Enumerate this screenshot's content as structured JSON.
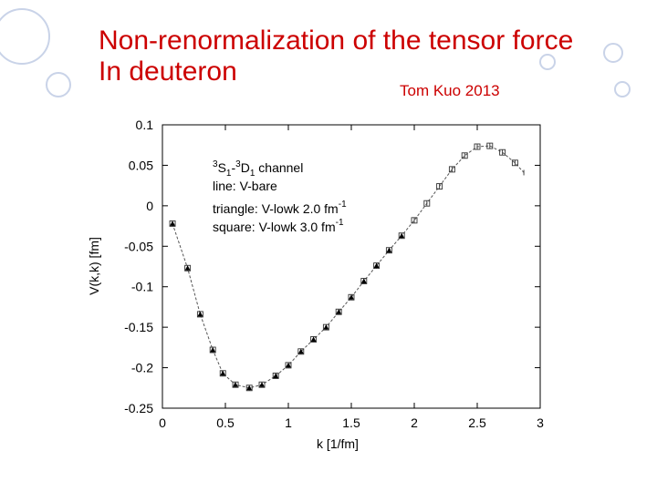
{
  "slide": {
    "title_line1": "Non-renormalization of the tensor force",
    "title_line2": "In deuteron",
    "author": "Tom Kuo 2013",
    "accent_color": "#cc0000",
    "ring_color": "#c9d3e8"
  },
  "chart_data": {
    "type": "line",
    "xlabel": "k  [1/fm]",
    "ylabel": "V(k,k)  [fm]",
    "xlim": [
      0,
      3
    ],
    "ylim": [
      -0.25,
      0.1
    ],
    "x_ticks": [
      0,
      0.5,
      1,
      1.5,
      2,
      2.5,
      3
    ],
    "y_ticks": [
      0.1,
      0.05,
      0,
      -0.05,
      -0.1,
      -0.15,
      -0.2,
      -0.25
    ],
    "x_tick_labels": [
      "0",
      "0.5",
      "1",
      "1.5",
      "2",
      "2.5",
      "3"
    ],
    "y_tick_labels": [
      "0.1",
      "0.05",
      "0",
      "-0.05",
      "-0.1",
      "-0.15",
      "-0.2",
      "-0.25"
    ],
    "grid": false,
    "legend_position": "top-left",
    "legend": {
      "channel_sup1": "3",
      "channel_s": "S",
      "channel_sub1": "1",
      "channel_dash": "-",
      "channel_sup2": "3",
      "channel_d": "D",
      "channel_sub2": "1",
      "channel_word": " channel",
      "line_entry": "line: V-bare",
      "triangle_entry": "triangle: V-lowk  2.0 fm",
      "triangle_sup": "-1",
      "square_entry": "square:  V-lowk  3.0 fm",
      "square_sup": "-1"
    },
    "series": [
      {
        "marker": "line",
        "x": [
          0.08,
          0.2,
          0.3,
          0.4,
          0.48,
          0.58,
          0.69,
          0.79,
          0.9,
          1.0,
          1.1,
          1.2,
          1.3,
          1.4,
          1.5,
          1.6,
          1.7,
          1.8,
          1.9,
          2.0,
          2.1,
          2.2,
          2.3,
          2.4,
          2.5,
          2.6,
          2.7,
          2.8,
          2.87
        ],
        "y": [
          -0.022,
          -0.077,
          -0.134,
          -0.178,
          -0.207,
          -0.221,
          -0.225,
          -0.221,
          -0.21,
          -0.197,
          -0.18,
          -0.165,
          -0.15,
          -0.131,
          -0.113,
          -0.093,
          -0.074,
          -0.055,
          -0.037,
          -0.018,
          0.003,
          0.024,
          0.045,
          0.062,
          0.073,
          0.074,
          0.066,
          0.053,
          0.041
        ]
      },
      {
        "marker": "triangle",
        "x": [
          0.08,
          0.2,
          0.3,
          0.4,
          0.48,
          0.58,
          0.69,
          0.79,
          0.9,
          1.0,
          1.1,
          1.2,
          1.3,
          1.4,
          1.5,
          1.6,
          1.7,
          1.8,
          1.9
        ],
        "y": [
          -0.022,
          -0.077,
          -0.134,
          -0.178,
          -0.207,
          -0.221,
          -0.225,
          -0.221,
          -0.21,
          -0.197,
          -0.18,
          -0.165,
          -0.15,
          -0.131,
          -0.113,
          -0.093,
          -0.074,
          -0.055,
          -0.037
        ]
      },
      {
        "marker": "square",
        "x": [
          0.08,
          0.2,
          0.3,
          0.4,
          0.48,
          0.58,
          0.69,
          0.79,
          0.9,
          1.0,
          1.1,
          1.2,
          1.3,
          1.4,
          1.5,
          1.6,
          1.7,
          1.8,
          1.9,
          2.0,
          2.1,
          2.2,
          2.3,
          2.4,
          2.5,
          2.6,
          2.7,
          2.8
        ],
        "y": [
          -0.022,
          -0.077,
          -0.134,
          -0.178,
          -0.207,
          -0.221,
          -0.225,
          -0.221,
          -0.21,
          -0.197,
          -0.18,
          -0.165,
          -0.15,
          -0.131,
          -0.113,
          -0.093,
          -0.074,
          -0.055,
          -0.037,
          -0.018,
          0.003,
          0.024,
          0.045,
          0.062,
          0.073,
          0.074,
          0.066,
          0.053
        ]
      }
    ]
  }
}
